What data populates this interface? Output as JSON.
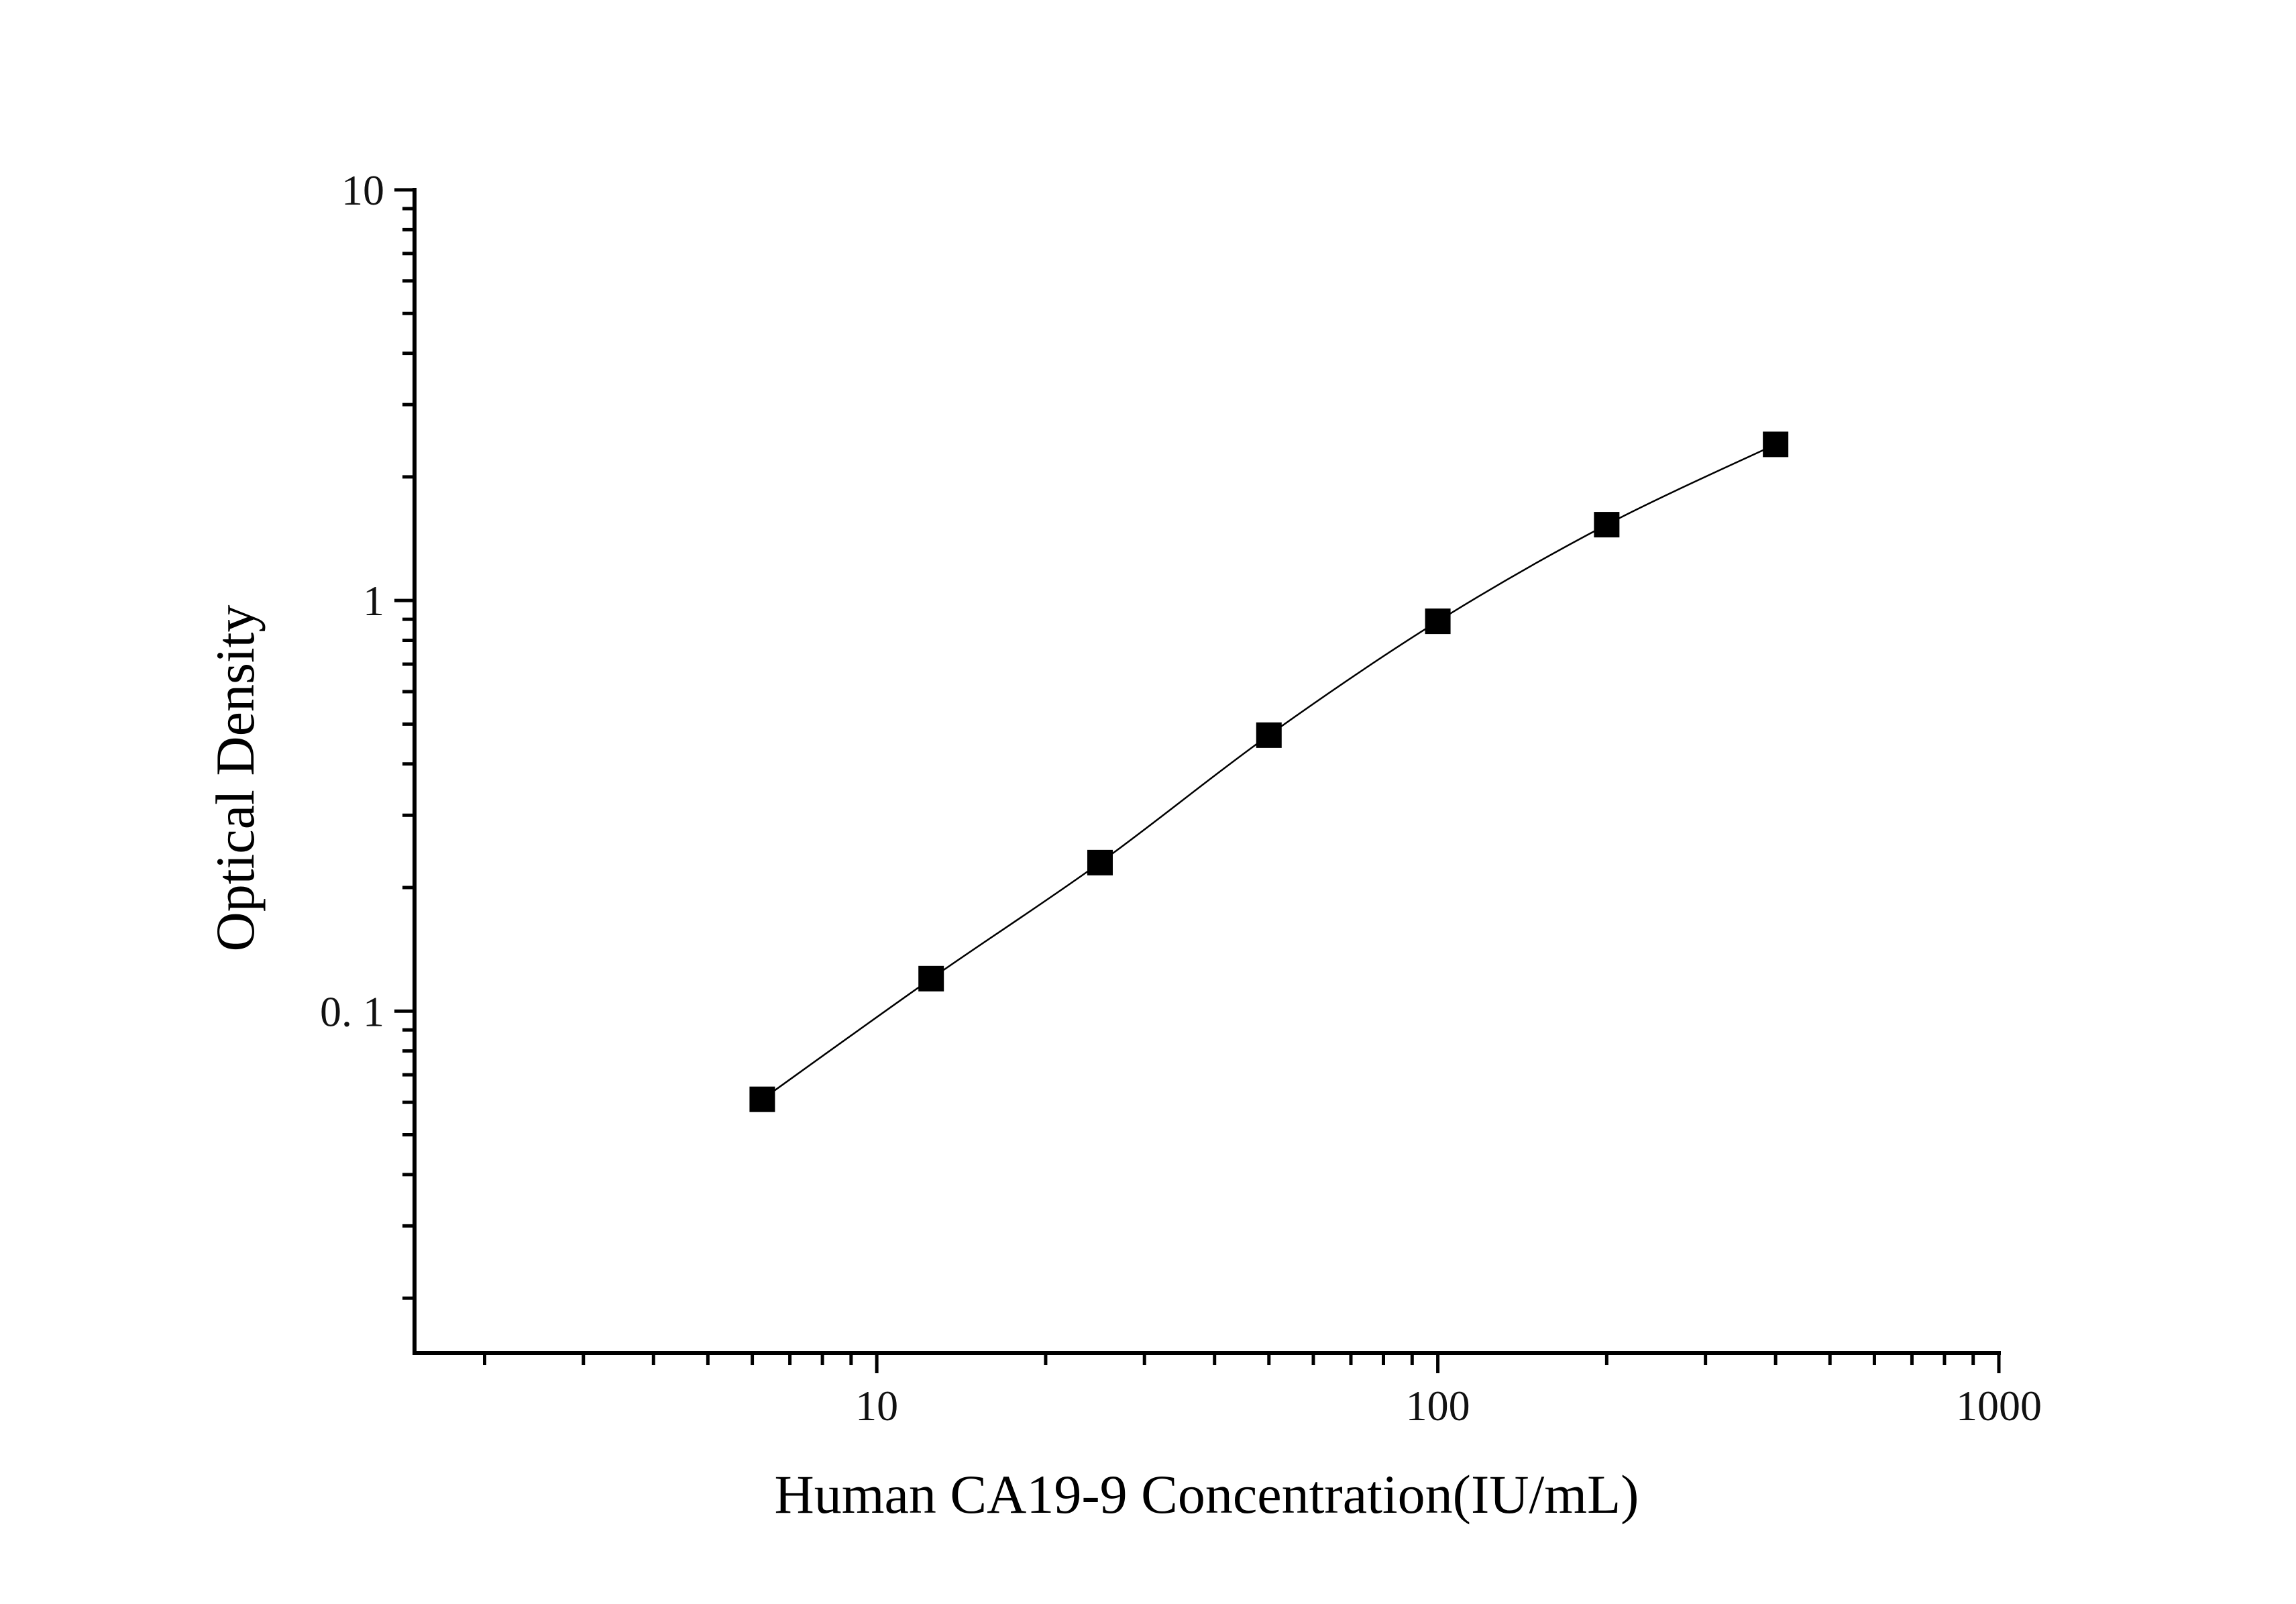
{
  "chart_data": {
    "type": "scatter",
    "xlabel": "Human CA19-9 Concentration(IU/mL)",
    "ylabel": "Optical Density",
    "x_scale": "log",
    "y_scale": "log",
    "xlim": [
      1.5,
      1000
    ],
    "ylim": [
      0.0147,
      10
    ],
    "x_ticks": [
      {
        "value": 10,
        "label": "10"
      },
      {
        "value": 100,
        "label": "100"
      },
      {
        "value": 1000,
        "label": "1000"
      }
    ],
    "y_ticks": [
      {
        "value": 0.1,
        "label": "0. 1"
      },
      {
        "value": 1,
        "label": "1"
      },
      {
        "value": 10,
        "label": "10"
      }
    ],
    "grid": false,
    "marker": "square",
    "fit_line": true,
    "series": [
      {
        "x": [
          6.25,
          12.5,
          25,
          50,
          100,
          200,
          400
        ],
        "y": [
          0.061,
          0.12,
          0.23,
          0.47,
          0.89,
          1.53,
          2.4
        ]
      }
    ],
    "colors": {
      "marker": "#000000",
      "line": "#000000",
      "axis": "#000000"
    }
  }
}
